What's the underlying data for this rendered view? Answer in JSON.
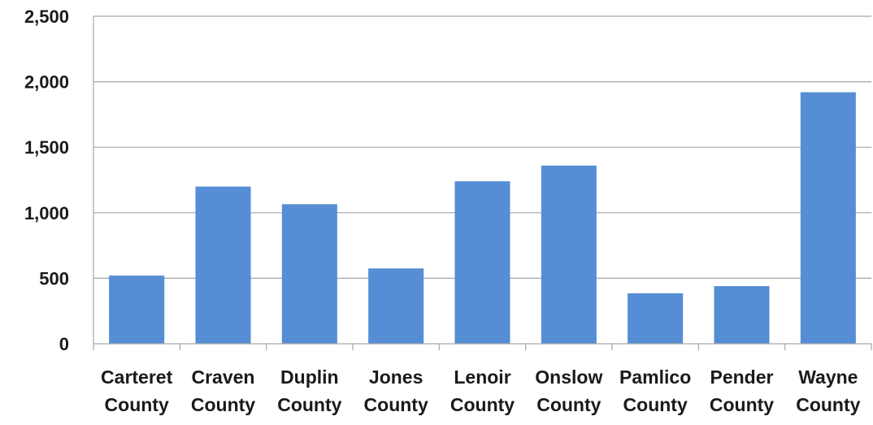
{
  "chart_data": {
    "type": "bar",
    "title": "",
    "xlabel": "",
    "ylabel": "",
    "categories": [
      [
        "Carteret",
        "County"
      ],
      [
        "Craven",
        "County"
      ],
      [
        "Duplin",
        "County"
      ],
      [
        "Jones",
        "County"
      ],
      [
        "Lenoir",
        "County"
      ],
      [
        "Onslow",
        "County"
      ],
      [
        "Pamlico",
        "County"
      ],
      [
        "Pender",
        "County"
      ],
      [
        "Wayne",
        "County"
      ]
    ],
    "values": [
      520,
      1200,
      1065,
      575,
      1240,
      1360,
      385,
      440,
      1920
    ],
    "ylim": [
      0,
      2500
    ],
    "yticks": [
      0,
      500,
      1000,
      1500,
      2000,
      2500
    ],
    "ytick_labels": [
      "0",
      "500",
      "1,000",
      "1,500",
      "2,000",
      "2,500"
    ],
    "grid": true,
    "legend": "none",
    "colors": {
      "bar": "#558ed5",
      "grid": "#a6a6a6",
      "axis": "#a6a6a6"
    }
  }
}
